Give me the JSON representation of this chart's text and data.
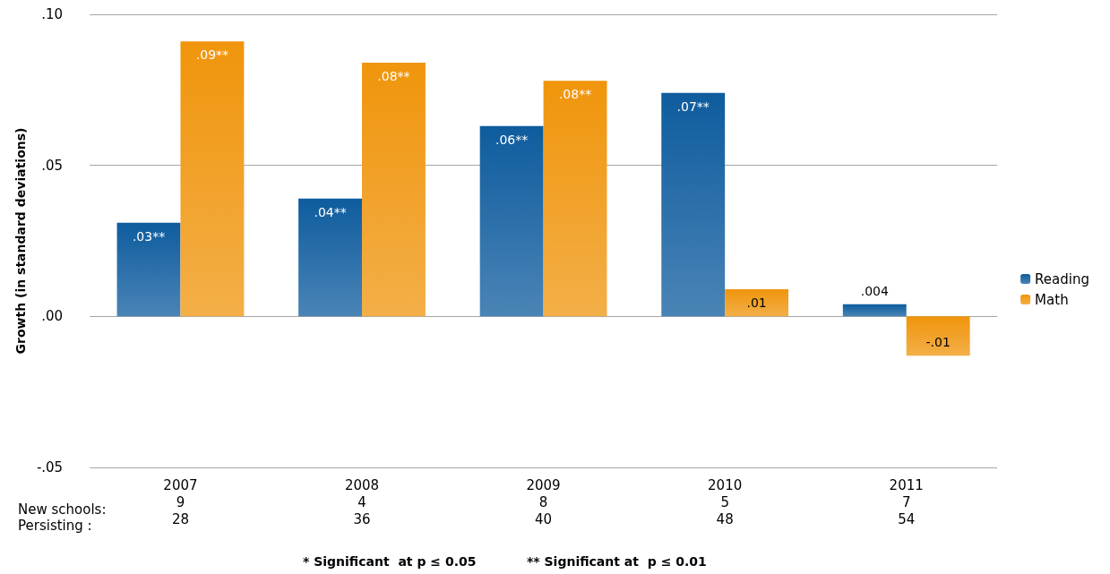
{
  "chart_data": {
    "type": "bar",
    "ylabel": "Growth (in standard deviations)",
    "categories": [
      "2007\n9\n28",
      "2008\n4\n36",
      "2009\n8\n40",
      "2010\n5\n48",
      "2011\n7\n54"
    ],
    "series": [
      {
        "name": "Reading",
        "color": "#0e5c9e",
        "values": [
          0.031,
          0.039,
          0.063,
          0.074,
          0.004
        ],
        "value_labels": [
          ".03**",
          ".04**",
          ".06**",
          ".07**",
          ".004"
        ]
      },
      {
        "name": "Math",
        "color": "#f0950c",
        "values": [
          0.091,
          0.084,
          0.078,
          0.009,
          -0.013
        ],
        "value_labels": [
          ".09**",
          ".08**",
          ".08**",
          ".01",
          "-.01"
        ]
      }
    ],
    "ylim": [
      -0.05,
      0.1
    ],
    "yticks": [
      {
        "value": -0.05,
        "label": "-.05"
      },
      {
        "value": 0,
        "label": ".00"
      },
      {
        "value": 0.05,
        "label": ".05"
      },
      {
        "value": 0.1,
        "label": ".10"
      }
    ],
    "grid": "y",
    "legend": "right",
    "annotations": [
      "New schools:\nPersisting :",
      "* Significant  at p ≤ 0.05",
      "** Significant at  p ≤ 0.01"
    ]
  }
}
